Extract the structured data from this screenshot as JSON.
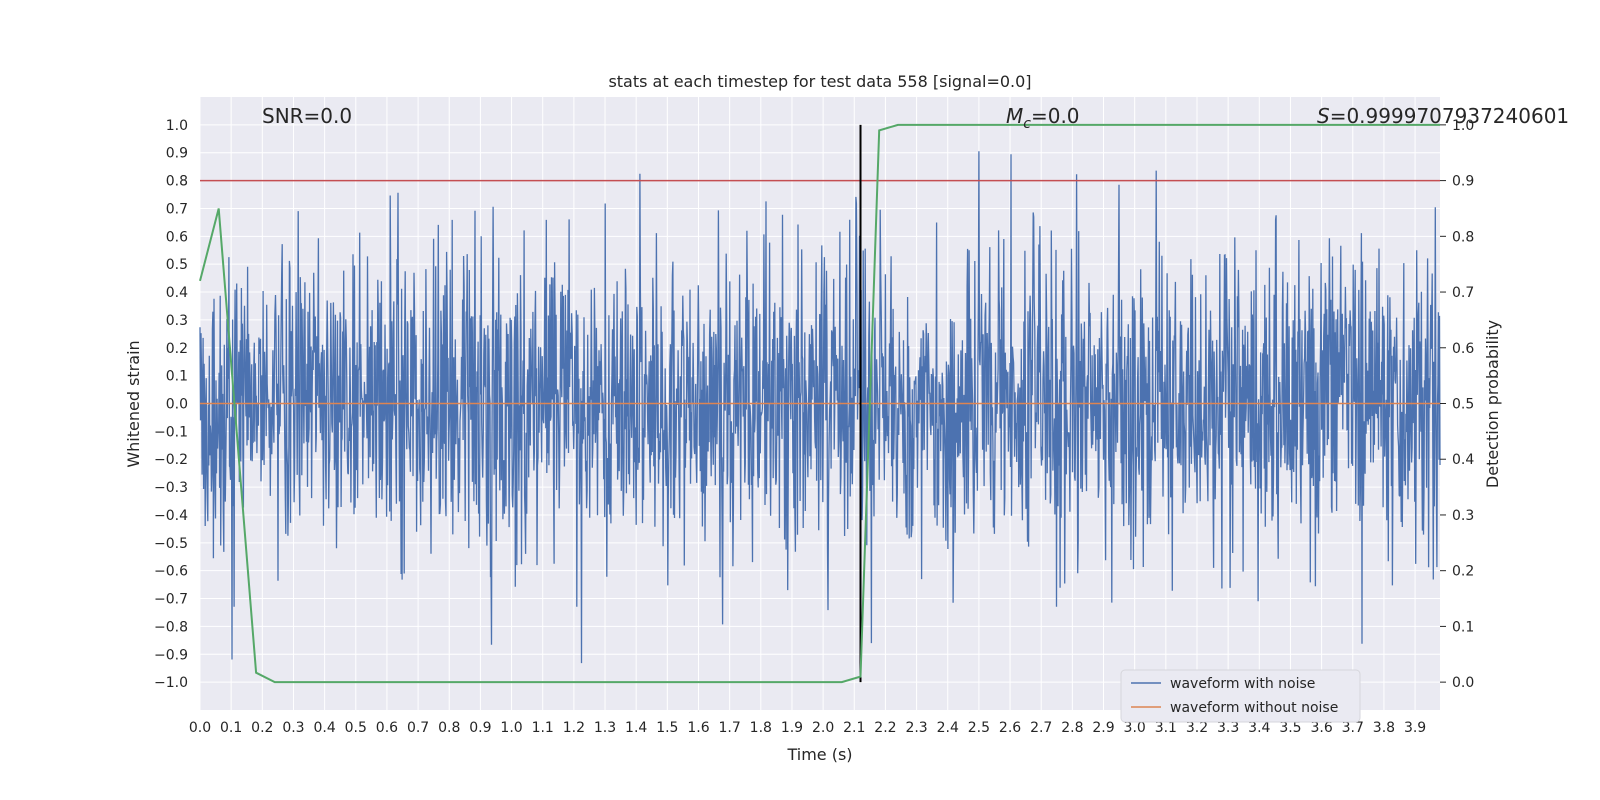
{
  "chart_data": {
    "type": "line",
    "title": "stats at each timestep for test data 558 [signal=0.0]",
    "xlabel": "Time (s)",
    "ylabel_left": "Whitened strain",
    "ylabel_right": "Detection probability",
    "xlim": [
      0.0,
      3.98
    ],
    "ylim_left": [
      -1.1,
      1.1
    ],
    "ylim_right": [
      -0.05,
      1.05
    ],
    "x_ticks": [
      "0.0",
      "0.1",
      "0.2",
      "0.3",
      "0.4",
      "0.5",
      "0.6",
      "0.7",
      "0.8",
      "0.9",
      "1.0",
      "1.1",
      "1.2",
      "1.3",
      "1.4",
      "1.5",
      "1.6",
      "1.7",
      "1.8",
      "1.9",
      "2.0",
      "2.1",
      "2.2",
      "2.3",
      "2.4",
      "2.5",
      "2.6",
      "2.7",
      "2.8",
      "2.9",
      "3.0",
      "3.1",
      "3.2",
      "3.3",
      "3.4",
      "3.5",
      "3.6",
      "3.7",
      "3.8",
      "3.9"
    ],
    "y_ticks_left": [
      "1.0",
      "0.9",
      "0.8",
      "0.7",
      "0.6",
      "0.5",
      "0.4",
      "0.3",
      "0.2",
      "0.1",
      "0.0",
      "−0.1",
      "−0.2",
      "−0.3",
      "−0.4",
      "−0.5",
      "−0.6",
      "−0.7",
      "−0.8",
      "−0.9",
      "−1.0"
    ],
    "y_ticks_right": [
      "1.0",
      "0.9",
      "0.8",
      "0.7",
      "0.6",
      "0.5",
      "0.4",
      "0.3",
      "0.2",
      "0.1",
      "0.0"
    ],
    "annotations": {
      "snr": "SNR=0.0",
      "mc_symbol": "M",
      "mc_subscript": "c",
      "mc_value": "=0.0",
      "s_symbol": "S",
      "s_value": "=0.9999707937240601"
    },
    "threshold_line": {
      "axis": "left",
      "y": 0.8,
      "color": "#c44e52"
    },
    "vertical_marker": {
      "x": 2.12,
      "color": "#000000"
    },
    "series": [
      {
        "name": "waveform with noise",
        "color": "#4c72b0",
        "axis": "left",
        "note": "dense whitened noise, amplitude roughly within ±1.0"
      },
      {
        "name": "waveform without noise",
        "color": "#dd8452",
        "axis": "left",
        "values_constant": 0.0
      },
      {
        "name": "detection probability",
        "color": "#55a868",
        "axis": "right",
        "x": [
          0.0,
          0.06,
          0.18,
          0.24,
          2.06,
          2.12,
          2.18,
          2.24,
          3.98
        ],
        "y": [
          0.72,
          0.85,
          0.017,
          0.0,
          0.0,
          0.01,
          0.99,
          1.0,
          1.0
        ]
      }
    ],
    "legend": {
      "placement": "bottom-right",
      "entries": [
        "waveform with noise",
        "waveform without noise"
      ]
    }
  },
  "colors": {
    "plot_bg": "#eaeaf2",
    "grid": "#ffffff",
    "text": "#262626"
  }
}
